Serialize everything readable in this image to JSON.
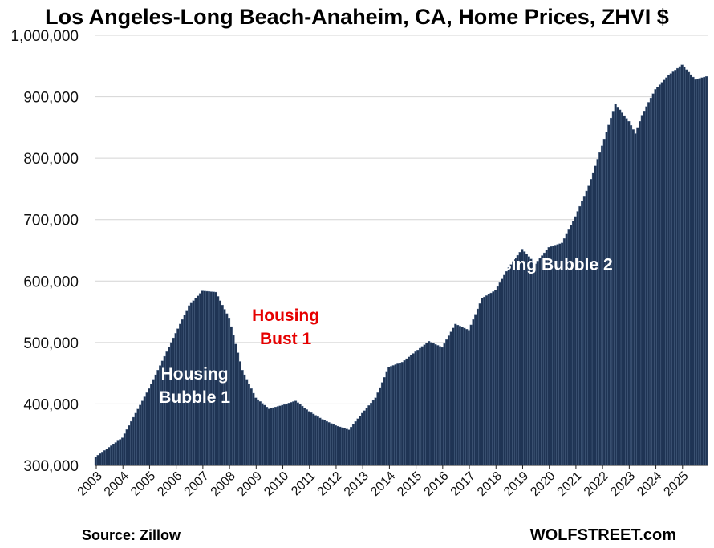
{
  "source": "Source: Zillow",
  "brand": "WOLFSTREET.com",
  "chart_data": {
    "type": "bar",
    "title": "Los Angeles-Long Beach-Anaheim, CA, Home Prices, ZHVI $",
    "xlabel": "",
    "ylabel": "",
    "ylim": [
      300000,
      1000000
    ],
    "yticks": [
      300000,
      400000,
      500000,
      600000,
      700000,
      800000,
      900000,
      1000000
    ],
    "ytick_labels": [
      "300,000",
      "400,000",
      "500,000",
      "600,000",
      "700,000",
      "800,000",
      "900,000",
      "1,000,000"
    ],
    "xtick_labels": [
      "2003",
      "2004",
      "2005",
      "2006",
      "2007",
      "2008",
      "2009",
      "2010",
      "2011",
      "2012",
      "2013",
      "2014",
      "2015",
      "2016",
      "2017",
      "2018",
      "2019",
      "2020",
      "2021",
      "2022",
      "2023",
      "2024",
      "2025"
    ],
    "grid": true,
    "legend": "none",
    "start": "2003-01",
    "frequency": "monthly",
    "bar_color": "#1f3454",
    "anchors": [
      [
        "2003-01",
        314000
      ],
      [
        "2004-01",
        345000
      ],
      [
        "2005-01",
        425000
      ],
      [
        "2005-07",
        470000
      ],
      [
        "2006-01",
        515000
      ],
      [
        "2006-07",
        560000
      ],
      [
        "2007-01",
        584000
      ],
      [
        "2007-07",
        582000
      ],
      [
        "2008-01",
        540000
      ],
      [
        "2008-07",
        455000
      ],
      [
        "2009-01",
        410000
      ],
      [
        "2009-07",
        392000
      ],
      [
        "2010-01",
        398000
      ],
      [
        "2010-07",
        405000
      ],
      [
        "2011-01",
        388000
      ],
      [
        "2011-07",
        375000
      ],
      [
        "2012-01",
        365000
      ],
      [
        "2012-07",
        358000
      ],
      [
        "2013-01",
        385000
      ],
      [
        "2013-07",
        410000
      ],
      [
        "2014-01",
        460000
      ],
      [
        "2014-07",
        468000
      ],
      [
        "2015-01",
        485000
      ],
      [
        "2015-07",
        502000
      ],
      [
        "2016-01",
        492000
      ],
      [
        "2016-07",
        530000
      ],
      [
        "2017-01",
        520000
      ],
      [
        "2017-07",
        572000
      ],
      [
        "2018-01",
        585000
      ],
      [
        "2018-07",
        622000
      ],
      [
        "2019-01",
        652000
      ],
      [
        "2019-07",
        628000
      ],
      [
        "2020-01",
        655000
      ],
      [
        "2020-07",
        662000
      ],
      [
        "2021-01",
        705000
      ],
      [
        "2021-07",
        755000
      ],
      [
        "2022-01",
        820000
      ],
      [
        "2022-07",
        888000
      ],
      [
        "2023-01",
        860000
      ],
      [
        "2023-04",
        840000
      ],
      [
        "2023-07",
        870000
      ],
      [
        "2024-01",
        912000
      ],
      [
        "2024-07",
        935000
      ],
      [
        "2025-01",
        952000
      ],
      [
        "2025-07",
        928000
      ],
      [
        "2025-12",
        933000
      ]
    ],
    "annotations": [
      {
        "text_lines": [
          "Housing",
          "Bubble 1"
        ],
        "color": "#ffffff",
        "at": [
          "2006-10",
          440000
        ]
      },
      {
        "text_lines": [
          "Housing",
          "Bust 1"
        ],
        "color": "#e60000",
        "at": [
          "2010-03",
          535000
        ]
      },
      {
        "text_lines": [
          "Housing Bubble 2"
        ],
        "color": "#ffffff",
        "at": [
          "2019-10",
          618000
        ]
      }
    ]
  }
}
